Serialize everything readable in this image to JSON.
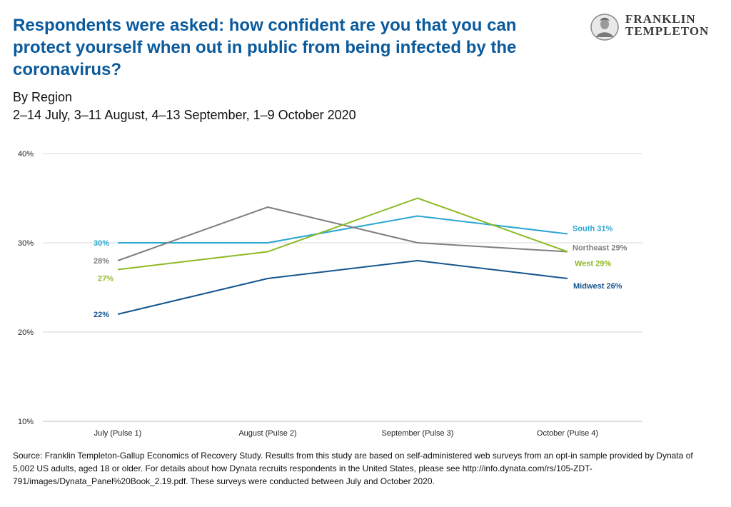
{
  "header": {
    "title": "Respondents were asked: how confident are you that you can protect yourself when out in public from being infected by the coronavirus?",
    "subtitle_line1": "By Region",
    "subtitle_line2": "2–14 July, 3–11 August, 4–13 September, 1–9 October 2020"
  },
  "logo": {
    "line1": "FRANKLIN",
    "line2": "TEMPLETON"
  },
  "chart_data": {
    "type": "line",
    "categories": [
      "July (Pulse 1)",
      "August (Pulse 2)",
      "September (Pulse 3)",
      "October (Pulse 4)"
    ],
    "ylim": [
      10,
      40
    ],
    "yticks": [
      10,
      20,
      30,
      40
    ],
    "ytick_labels": [
      "10%",
      "20%",
      "30%",
      "40%"
    ],
    "grid": true,
    "series": [
      {
        "name": "South",
        "color": "#2aa6d3",
        "values": [
          30,
          30,
          33,
          31
        ],
        "start_label": "30%",
        "end_label": "South 31%"
      },
      {
        "name": "Northeast",
        "color": "#7f7f7f",
        "values": [
          28,
          34,
          30,
          29
        ],
        "start_label": "28%",
        "end_label": "Northeast 29%"
      },
      {
        "name": "West",
        "color": "#8dba24",
        "values": [
          27,
          29,
          35,
          29
        ],
        "start_label": "27%",
        "end_label": "West 29%"
      },
      {
        "name": "Midwest",
        "color": "#15558f",
        "values": [
          22,
          26,
          28,
          26
        ],
        "start_label": "22%",
        "end_label": "Midwest 26%"
      }
    ]
  },
  "source": {
    "text": "Source: Franklin Templeton-Gallup Economics of Recovery Study. Results from this study are based on self-administered web surveys from an opt-in sample provided by Dynata of 5,002 US adults, aged 18 or older. For details about how Dynata recruits respondents in the United States, please see http://info.dynata.com/rs/105-ZDT-791/images/Dynata_Panel%20Book_2.19.pdf. These surveys were conducted between July and October 2020."
  }
}
